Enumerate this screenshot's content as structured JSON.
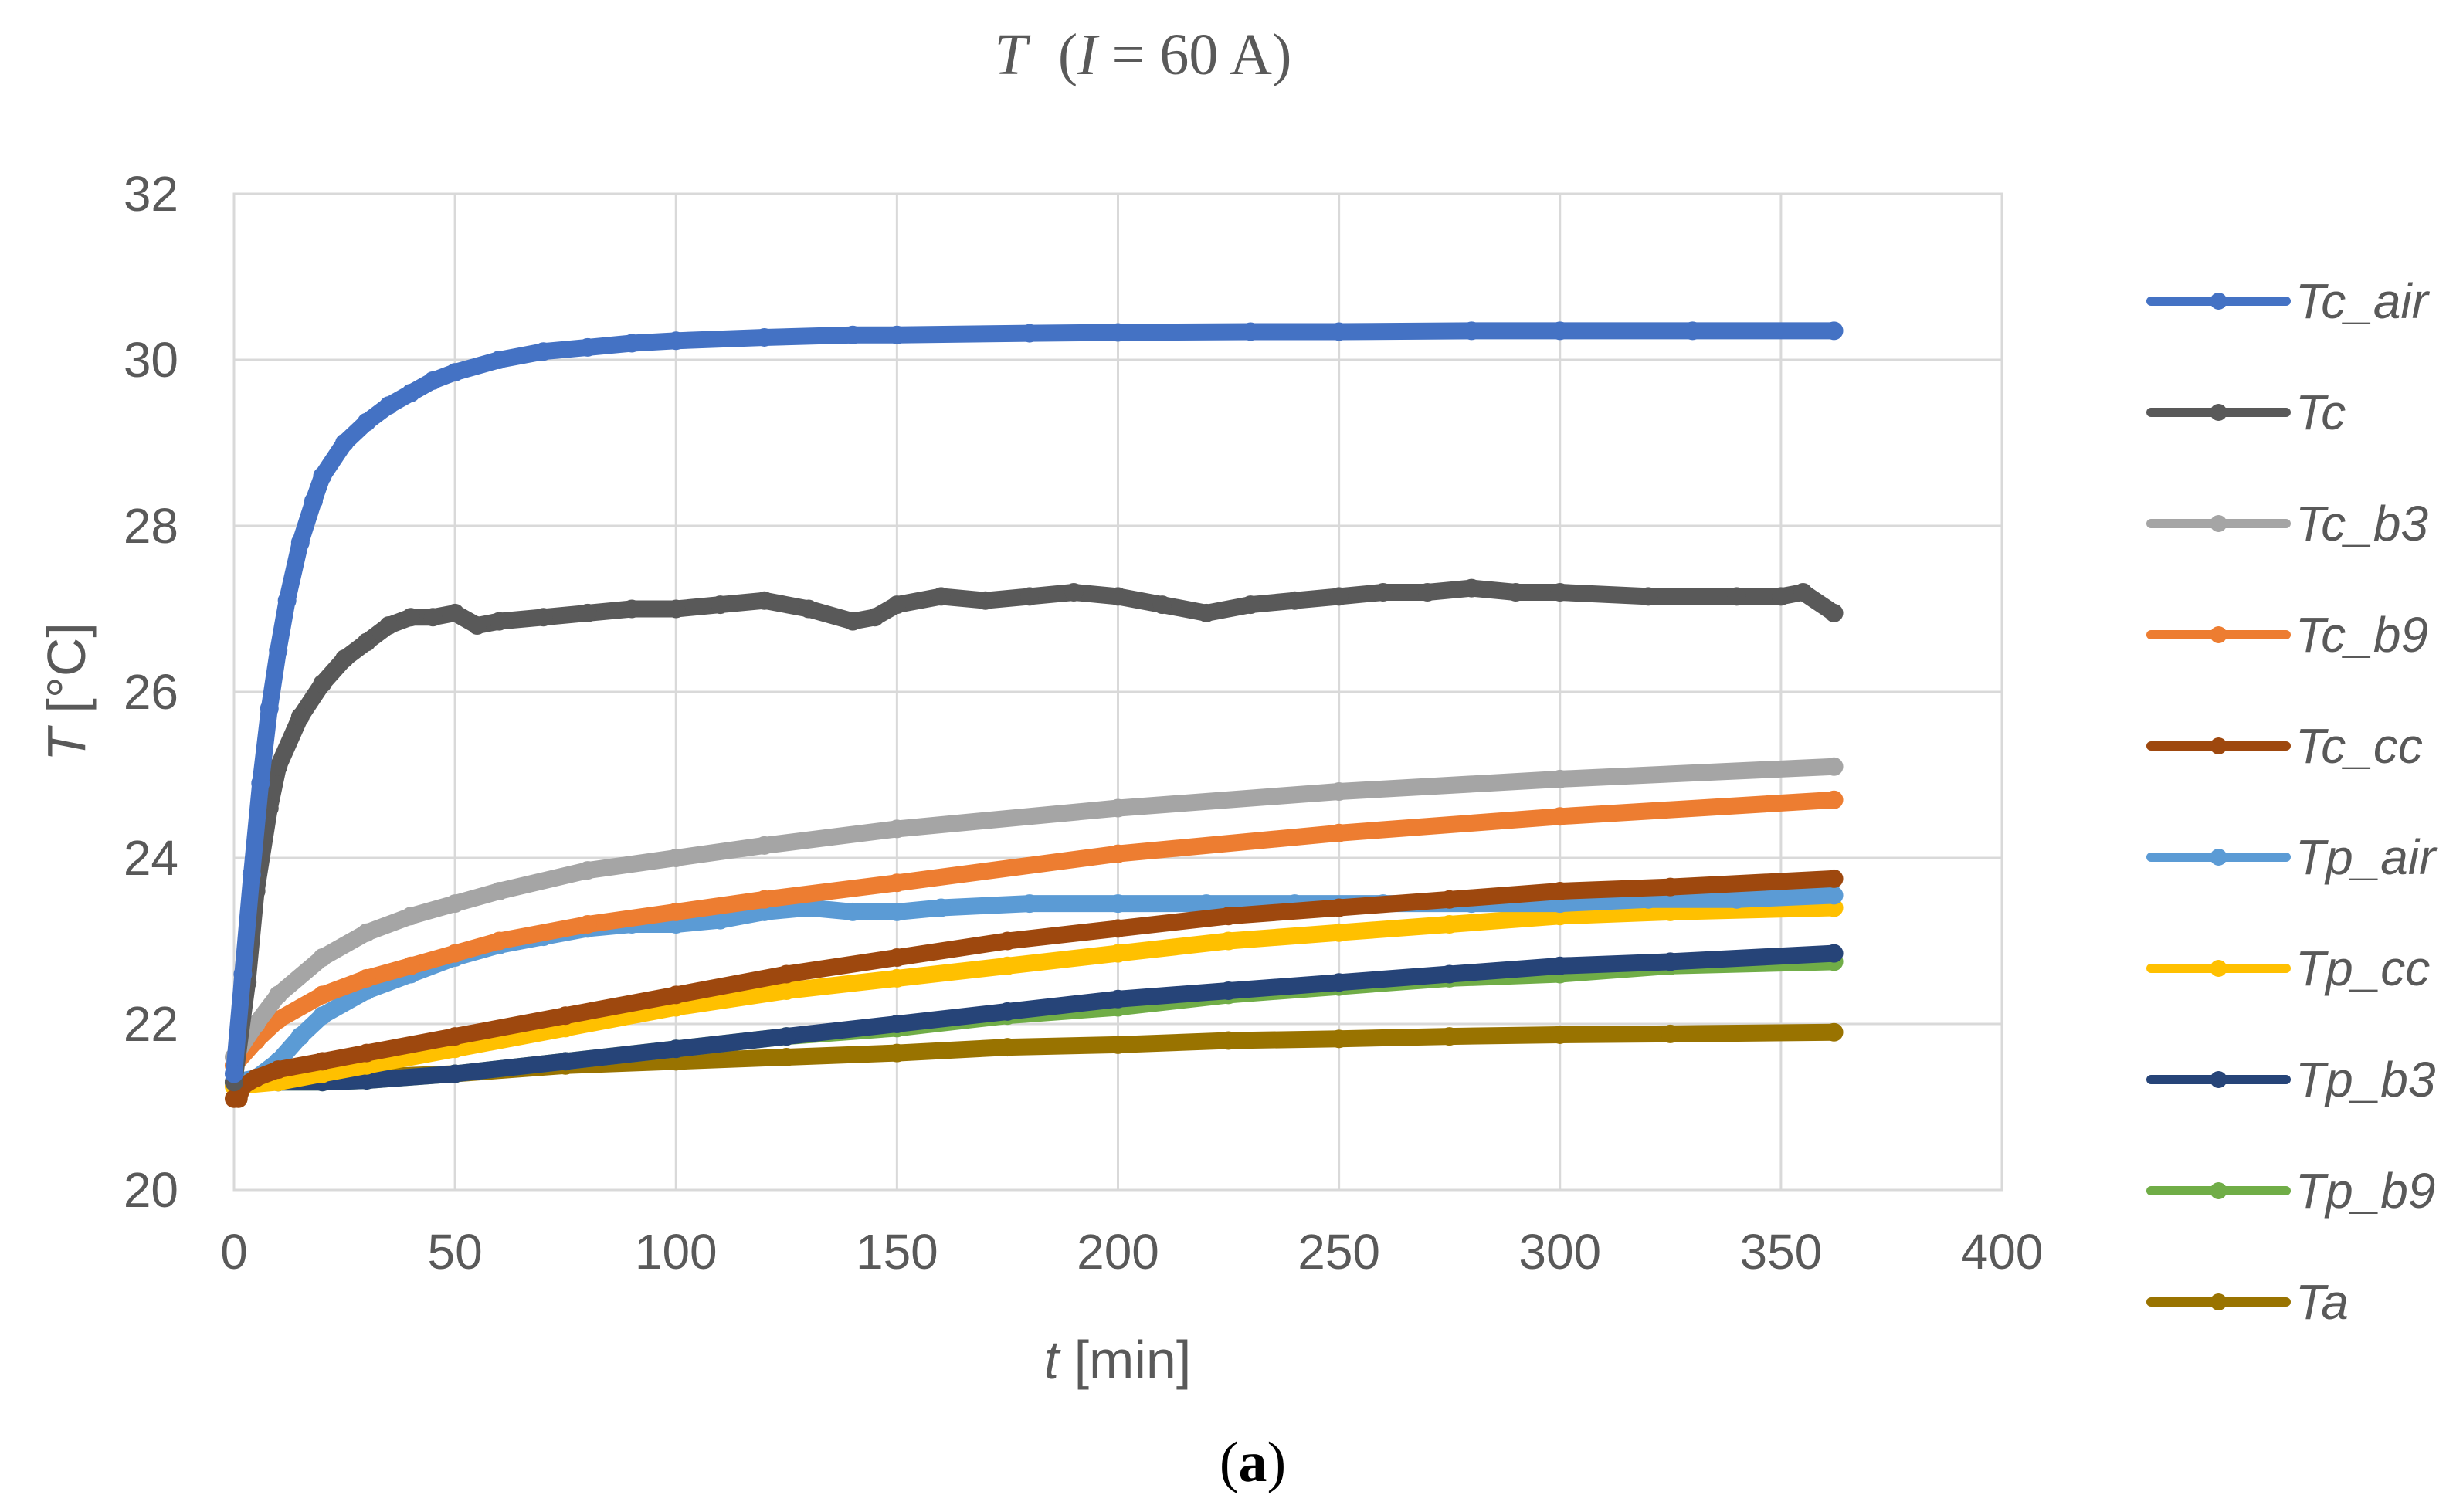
{
  "chart_data": {
    "type": "line",
    "title_var": "T",
    "title_cond_open": "(",
    "title_cond_var": "I",
    "title_cond_value": " = 60 A)",
    "xlabel_var": "t",
    "xlabel_unit": " [min]",
    "ylabel_var": "T",
    "ylabel_unit": " [°C]",
    "xlim": [
      0,
      400
    ],
    "ylim": [
      20,
      32
    ],
    "xticks": [
      0,
      50,
      100,
      150,
      200,
      250,
      300,
      350,
      400
    ],
    "yticks": [
      20,
      22,
      24,
      26,
      28,
      30,
      32
    ],
    "grid": true,
    "legend_position": "right",
    "caption_open": "(",
    "caption_letter": "a",
    "caption_close": ")",
    "series": [
      {
        "name": "Tc_air",
        "color": "#4472C4",
        "x": [
          0,
          2,
          4,
          6,
          8,
          10,
          12,
          15,
          18,
          20,
          25,
          30,
          35,
          40,
          45,
          50,
          60,
          70,
          80,
          90,
          100,
          120,
          140,
          150,
          180,
          200,
          230,
          250,
          280,
          300,
          330,
          362
        ],
        "y": [
          21.4,
          22.6,
          23.8,
          24.9,
          25.8,
          26.5,
          27.1,
          27.8,
          28.3,
          28.6,
          29.0,
          29.25,
          29.45,
          29.6,
          29.75,
          29.85,
          30.0,
          30.1,
          30.15,
          30.2,
          30.23,
          30.27,
          30.3,
          30.3,
          30.32,
          30.33,
          30.34,
          30.34,
          30.35,
          30.35,
          30.35,
          30.35
        ]
      },
      {
        "name": "Tc",
        "color": "#595959",
        "x": [
          0,
          3,
          5,
          8,
          10,
          15,
          20,
          25,
          30,
          35,
          40,
          45,
          50,
          55,
          60,
          70,
          80,
          90,
          100,
          110,
          120,
          130,
          140,
          145,
          150,
          160,
          170,
          180,
          190,
          200,
          210,
          220,
          230,
          240,
          250,
          260,
          270,
          280,
          290,
          300,
          320,
          340,
          350,
          355,
          362
        ],
        "y": [
          21.3,
          22.5,
          23.6,
          24.6,
          25.1,
          25.7,
          26.1,
          26.4,
          26.6,
          26.8,
          26.9,
          26.9,
          26.95,
          26.8,
          26.85,
          26.9,
          26.95,
          27.0,
          27.0,
          27.05,
          27.1,
          27.0,
          26.85,
          26.9,
          27.05,
          27.15,
          27.1,
          27.15,
          27.2,
          27.15,
          27.05,
          26.95,
          27.05,
          27.1,
          27.15,
          27.2,
          27.2,
          27.25,
          27.2,
          27.2,
          27.15,
          27.15,
          27.15,
          27.2,
          26.95
        ]
      },
      {
        "name": "Tc_b3",
        "color": "#A5A5A5",
        "x": [
          0,
          5,
          10,
          20,
          30,
          40,
          50,
          60,
          80,
          100,
          120,
          150,
          200,
          250,
          300,
          362
        ],
        "y": [
          21.6,
          22.0,
          22.35,
          22.8,
          23.1,
          23.3,
          23.45,
          23.6,
          23.85,
          24.0,
          24.15,
          24.35,
          24.6,
          24.8,
          24.95,
          25.1
        ]
      },
      {
        "name": "Tc_b9",
        "color": "#ED7D31",
        "x": [
          0,
          5,
          10,
          20,
          30,
          40,
          50,
          60,
          80,
          100,
          120,
          150,
          200,
          250,
          300,
          362
        ],
        "y": [
          21.5,
          21.8,
          22.05,
          22.35,
          22.55,
          22.7,
          22.85,
          23.0,
          23.2,
          23.35,
          23.5,
          23.7,
          24.05,
          24.3,
          24.5,
          24.7
        ]
      },
      {
        "name": "Tc_cc",
        "color": "#9E480E",
        "x": [
          0,
          1,
          2,
          5,
          10,
          20,
          30,
          50,
          75,
          100,
          125,
          150,
          175,
          200,
          225,
          250,
          275,
          300,
          325,
          362
        ],
        "y": [
          21.1,
          21.1,
          21.25,
          21.35,
          21.45,
          21.55,
          21.65,
          21.85,
          22.1,
          22.35,
          22.6,
          22.8,
          23.0,
          23.15,
          23.3,
          23.4,
          23.5,
          23.6,
          23.65,
          23.75
        ]
      },
      {
        "name": "Tp_air",
        "color": "#5B9BD5",
        "x": [
          0,
          5,
          10,
          15,
          20,
          30,
          40,
          50,
          60,
          70,
          80,
          90,
          100,
          110,
          120,
          130,
          140,
          150,
          160,
          180,
          200,
          220,
          240,
          260,
          280,
          300,
          320,
          340,
          362
        ],
        "y": [
          21.3,
          21.35,
          21.55,
          21.85,
          22.1,
          22.4,
          22.6,
          22.8,
          22.95,
          23.05,
          23.15,
          23.2,
          23.2,
          23.25,
          23.35,
          23.4,
          23.35,
          23.35,
          23.4,
          23.45,
          23.45,
          23.45,
          23.45,
          23.45,
          23.45,
          23.45,
          23.5,
          23.5,
          23.55
        ]
      },
      {
        "name": "Tp_cc",
        "color": "#FFC000",
        "x": [
          0,
          10,
          20,
          30,
          50,
          75,
          100,
          125,
          150,
          175,
          200,
          225,
          250,
          275,
          300,
          325,
          362
        ],
        "y": [
          21.25,
          21.3,
          21.4,
          21.5,
          21.7,
          21.95,
          22.2,
          22.4,
          22.55,
          22.7,
          22.85,
          23.0,
          23.1,
          23.2,
          23.3,
          23.35,
          23.4
        ]
      },
      {
        "name": "Tp_b3",
        "color": "#264478",
        "x": [
          0,
          10,
          20,
          30,
          50,
          75,
          100,
          125,
          150,
          175,
          200,
          225,
          250,
          275,
          300,
          325,
          362
        ],
        "y": [
          21.3,
          21.3,
          21.3,
          21.32,
          21.4,
          21.55,
          21.7,
          21.85,
          22.0,
          22.15,
          22.3,
          22.4,
          22.5,
          22.6,
          22.7,
          22.75,
          22.85
        ]
      },
      {
        "name": "Tp_b9",
        "color": "#70AD47",
        "x": [
          0,
          10,
          20,
          30,
          50,
          75,
          100,
          125,
          150,
          175,
          200,
          225,
          250,
          275,
          300,
          325,
          362
        ],
        "y": [
          21.3,
          21.3,
          21.3,
          21.32,
          21.4,
          21.55,
          21.7,
          21.85,
          21.95,
          22.1,
          22.2,
          22.35,
          22.45,
          22.55,
          22.6,
          22.7,
          22.75
        ]
      },
      {
        "name": "Ta",
        "color": "#997300",
        "x": [
          0,
          25,
          50,
          75,
          100,
          125,
          150,
          175,
          200,
          225,
          250,
          275,
          300,
          325,
          362
        ],
        "y": [
          21.3,
          21.35,
          21.4,
          21.5,
          21.55,
          21.6,
          21.65,
          21.72,
          21.75,
          21.8,
          21.82,
          21.85,
          21.87,
          21.88,
          21.9
        ]
      }
    ]
  }
}
